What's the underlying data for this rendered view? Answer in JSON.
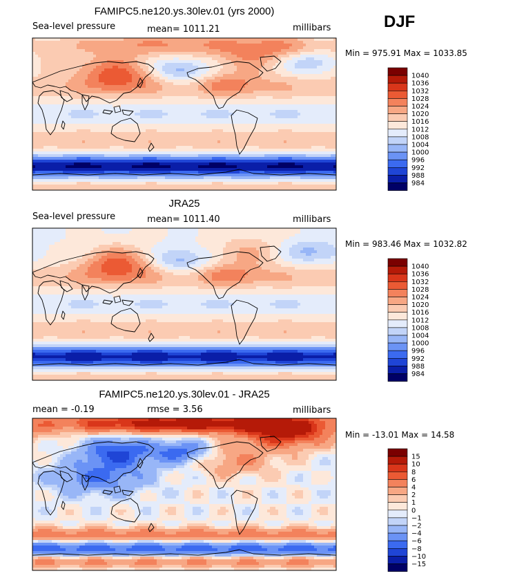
{
  "season": "DJF",
  "colors": {
    "slp": [
      "#000066",
      "#0a1ea8",
      "#1f45d6",
      "#3b6af0",
      "#6b93f5",
      "#98b6f7",
      "#c2d4f8",
      "#e4ecfb",
      "#fde8da",
      "#fbcbb2",
      "#f7a784",
      "#f3825c",
      "#eb5a34",
      "#d9361a",
      "#b51a08",
      "#7a0000"
    ],
    "diff": [
      "#000066",
      "#0a1ea8",
      "#1f45d6",
      "#3b6af0",
      "#6b93f5",
      "#98b6f7",
      "#c2d4f8",
      "#e4ecfb",
      "#fde8da",
      "#fbcbb2",
      "#f7a784",
      "#f3825c",
      "#eb5a34",
      "#d9361a",
      "#b51a08",
      "#7a0000"
    ]
  },
  "chart_data": [
    {
      "type": "heatmap",
      "title": "FAMIPC5.ne120.ys.30lev.01 (yrs 2000)",
      "left_label": "Sea-level pressure",
      "center_label": "mean= 1011.21",
      "right_label": "millibars",
      "min_max": "Min = 975.91 Max = 1033.85",
      "field": "slp_model",
      "colorbar_levels": [
        "1040",
        "1036",
        "1032",
        "1028",
        "1024",
        "1020",
        "1016",
        "1012",
        "1008",
        "1004",
        "1000",
        "996",
        "992",
        "988",
        "984"
      ]
    },
    {
      "type": "heatmap",
      "title": "JRA25",
      "left_label": "Sea-level pressure",
      "center_label": "mean= 1011.40",
      "right_label": "millibars",
      "min_max": "Min = 983.46 Max = 1032.82",
      "field": "slp_obs",
      "colorbar_levels": [
        "1040",
        "1036",
        "1032",
        "1028",
        "1024",
        "1020",
        "1016",
        "1012",
        "1008",
        "1004",
        "1000",
        "996",
        "992",
        "988",
        "984"
      ]
    },
    {
      "type": "heatmap",
      "title": "FAMIPC5.ne120.ys.30lev.01 - JRA25",
      "left_label": "mean =   -0.19",
      "center_label": "rmse =    3.56",
      "right_label": "millibars",
      "min_max": "Min = -13.01 Max =  14.58",
      "field": "slp_diff",
      "colorbar_levels": [
        "15",
        "10",
        "8",
        "6",
        "4",
        "2",
        "1",
        "0",
        "−1",
        "−2",
        "−4",
        "−6",
        "−8",
        "−10",
        "−15"
      ]
    }
  ]
}
